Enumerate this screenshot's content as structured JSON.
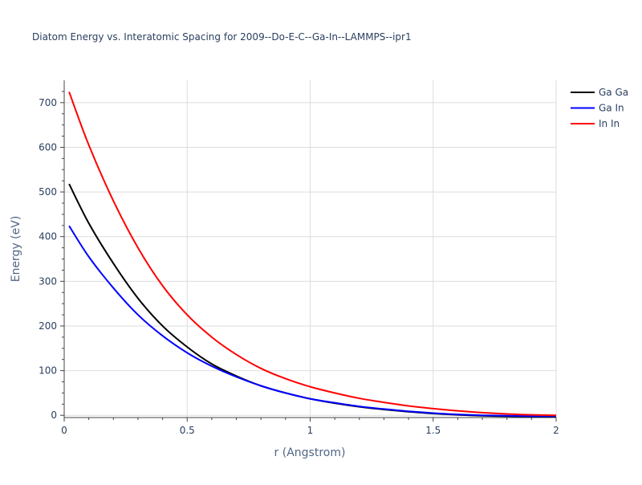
{
  "chart_data": {
    "type": "line",
    "title": "Diatom Energy vs. Interatomic Spacing for 2009--Do-E-C--Ga-In--LAMMPS--ipr1",
    "xlabel": "r (Angstrom)",
    "ylabel": "Energy (eV)",
    "xlim": [
      0,
      2
    ],
    "ylim": [
      -5,
      750
    ],
    "xticks": [
      0,
      0.5,
      1,
      1.5,
      2
    ],
    "xtick_labels": [
      "0",
      "0.5",
      "1",
      "1.5",
      "2"
    ],
    "yticks": [
      0,
      100,
      200,
      300,
      400,
      500,
      600,
      700
    ],
    "ytick_labels": [
      "0",
      "100",
      "200",
      "300",
      "400",
      "500",
      "600",
      "700"
    ],
    "grid": true,
    "legend_position": "top-right",
    "series": [
      {
        "name": "Ga Ga",
        "color": "#000000",
        "x": [
          0.02,
          0.1,
          0.2,
          0.3,
          0.4,
          0.5,
          0.6,
          0.7,
          0.8,
          0.9,
          1.0,
          1.1,
          1.2,
          1.3,
          1.4,
          1.5,
          1.6,
          1.7,
          1.8,
          1.9,
          2.0
        ],
        "y": [
          518,
          430,
          340,
          262,
          200,
          153,
          115,
          88,
          66,
          50,
          37,
          27,
          19,
          13,
          8,
          4,
          1,
          -1,
          -2,
          -3,
          -3
        ]
      },
      {
        "name": "Ga In",
        "color": "#0000ff",
        "x": [
          0.02,
          0.1,
          0.2,
          0.3,
          0.4,
          0.5,
          0.6,
          0.7,
          0.8,
          0.9,
          1.0,
          1.1,
          1.2,
          1.3,
          1.4,
          1.5,
          1.6,
          1.7,
          1.8,
          1.9,
          2.0
        ],
        "y": [
          424,
          355,
          285,
          225,
          178,
          140,
          110,
          86,
          66,
          50,
          37,
          28,
          20,
          14,
          9,
          5,
          2,
          0,
          -1,
          -2,
          -2
        ]
      },
      {
        "name": "In In",
        "color": "#ff0000",
        "x": [
          0.02,
          0.1,
          0.2,
          0.3,
          0.4,
          0.5,
          0.6,
          0.7,
          0.8,
          0.9,
          1.0,
          1.1,
          1.2,
          1.3,
          1.4,
          1.5,
          1.6,
          1.7,
          1.8,
          1.9,
          2.0
        ],
        "y": [
          724,
          605,
          480,
          375,
          290,
          225,
          175,
          136,
          105,
          82,
          64,
          50,
          38,
          29,
          21,
          15,
          10,
          6,
          3,
          1,
          0
        ]
      }
    ]
  }
}
